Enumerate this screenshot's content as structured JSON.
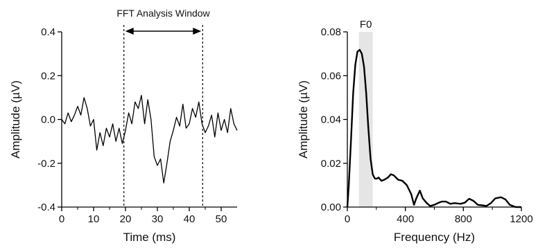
{
  "chart_data": [
    {
      "type": "line",
      "xlabel": "Time (ms)",
      "ylabel": "Amplitude (µV)",
      "xlim": [
        0,
        55
      ],
      "ylim": [
        -0.4,
        0.4
      ],
      "x_ticks": [
        "0",
        "10",
        "20",
        "30",
        "40",
        "50"
      ],
      "y_ticks": [
        "-0.4",
        "-0.2",
        "0.0",
        "0.2",
        "0.4"
      ],
      "annotation": {
        "label": "FFT Analysis Window",
        "x_start": 19.5,
        "x_end": 44.2
      },
      "series": [
        {
          "x": [
            0,
            1,
            2,
            3,
            4,
            5,
            6,
            7,
            8,
            9,
            10,
            11,
            12,
            13,
            14,
            15,
            16,
            17,
            18,
            19,
            20,
            21,
            22,
            23,
            24,
            25,
            26,
            27,
            28,
            29,
            30,
            31,
            32,
            33,
            34,
            35,
            36,
            37,
            38,
            39,
            40,
            41,
            42,
            43,
            44,
            45,
            46,
            47,
            48,
            49,
            50,
            51,
            52,
            53,
            54,
            55
          ],
          "y": [
            0.0,
            -0.02,
            0.03,
            -0.01,
            0.02,
            0.06,
            0.02,
            0.1,
            0.05,
            -0.03,
            0.0,
            -0.14,
            -0.06,
            -0.12,
            -0.04,
            -0.08,
            -0.02,
            -0.1,
            -0.04,
            -0.11,
            -0.05,
            0.03,
            -0.02,
            0.08,
            0.05,
            0.11,
            -0.02,
            0.09,
            0.0,
            -0.17,
            -0.21,
            -0.18,
            -0.29,
            -0.2,
            -0.1,
            -0.05,
            0.01,
            -0.03,
            0.07,
            -0.04,
            -0.02,
            0.05,
            0.01,
            0.08,
            -0.02,
            -0.06,
            -0.03,
            0.02,
            -0.08,
            0.03,
            -0.05,
            0.0,
            -0.06,
            0.05,
            -0.02,
            -0.05
          ]
        }
      ]
    },
    {
      "type": "line",
      "xlabel": "Frequency (Hz)",
      "ylabel": "Amplitude (µV)",
      "xlim": [
        0,
        1200
      ],
      "ylim": [
        0,
        0.08
      ],
      "x_ticks": [
        "0",
        "400",
        "800",
        "1200"
      ],
      "y_ticks": [
        "0.00",
        "0.02",
        "0.04",
        "0.06",
        "0.08"
      ],
      "shaded_band": {
        "label": "F0",
        "x_start": 80,
        "x_end": 175,
        "color": "#e5e5e5"
      },
      "series": [
        {
          "x": [
            0,
            10,
            25,
            40,
            55,
            70,
            85,
            100,
            115,
            130,
            145,
            160,
            175,
            190,
            205,
            215,
            235,
            255,
            280,
            300,
            320,
            350,
            380,
            410,
            440,
            460,
            475,
            500,
            520,
            545,
            570,
            600,
            630,
            650,
            680,
            710,
            740,
            780,
            810,
            840,
            870,
            900,
            930,
            960,
            990,
            1020,
            1060,
            1090,
            1120,
            1160,
            1200
          ],
          "y": [
            0.0,
            0.01,
            0.03,
            0.052,
            0.065,
            0.071,
            0.0718,
            0.07,
            0.064,
            0.052,
            0.036,
            0.022,
            0.015,
            0.013,
            0.013,
            0.0135,
            0.012,
            0.0125,
            0.0135,
            0.015,
            0.0145,
            0.0125,
            0.012,
            0.01,
            0.006,
            0.001,
            0.004,
            0.0075,
            0.004,
            0.002,
            0.0005,
            0.001,
            0.002,
            0.0025,
            0.0025,
            0.0015,
            0.0018,
            0.0015,
            0.002,
            0.0038,
            0.0028,
            0.001,
            0.0008,
            0.0005,
            0.0018,
            0.004,
            0.0045,
            0.0035,
            0.001,
            0.0,
            0.0
          ]
        }
      ]
    }
  ]
}
